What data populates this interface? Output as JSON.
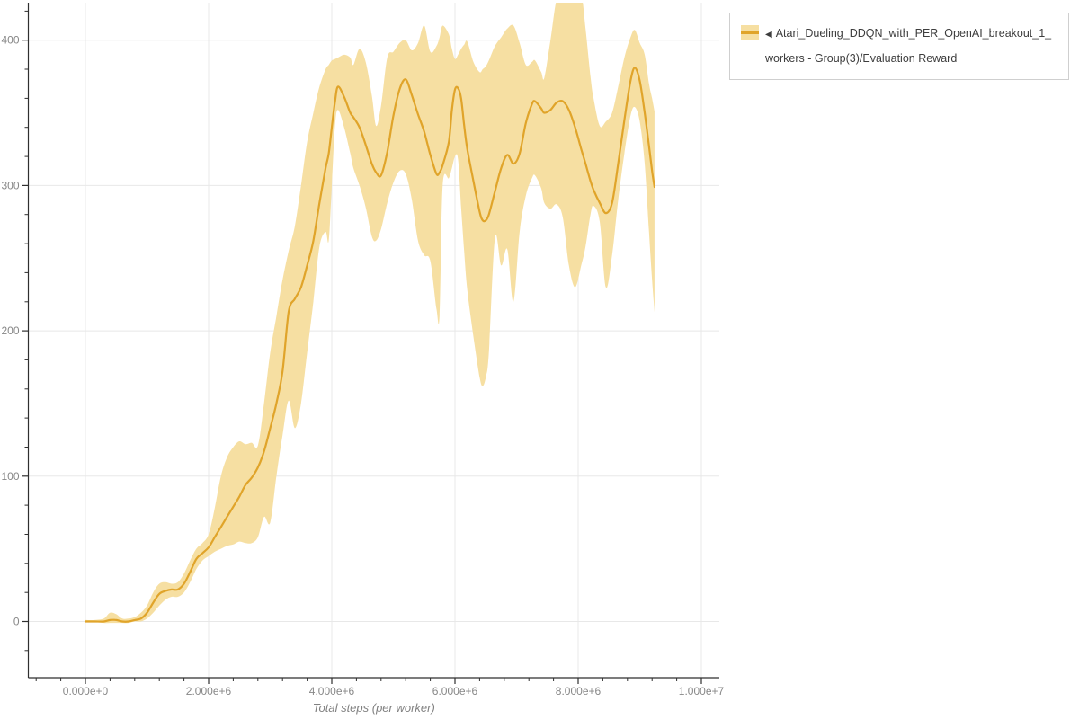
{
  "legend": {
    "marker": "◀",
    "label": "Atari_Dueling_DDQN_with_PER_OpenAI_breakout_1_workers - Group(3)/Evaluation Reward",
    "line_color": "#E0A42A",
    "band_color": "#F6DFA2",
    "border_color": "#cfcfcf",
    "text_color": "#3d3d3d"
  },
  "chart_data": {
    "type": "line",
    "title": "",
    "xlabel": "Total steps (per worker)",
    "ylabel": "",
    "grid": true,
    "legend_position": "top-right",
    "xlim_million_steps": [
      -0.93,
      10.29
    ],
    "ylim": [
      -39,
      426
    ],
    "x_ticks": [
      {
        "value": 0,
        "label": "0.000e+0"
      },
      {
        "value": 2,
        "label": "2.000e+6"
      },
      {
        "value": 4,
        "label": "4.000e+6"
      },
      {
        "value": 6,
        "label": "6.000e+6"
      },
      {
        "value": 8,
        "label": "8.000e+6"
      },
      {
        "value": 10,
        "label": "1.000e+7"
      }
    ],
    "y_ticks": [
      {
        "value": 0,
        "label": "0"
      },
      {
        "value": 100,
        "label": "100"
      },
      {
        "value": 200,
        "label": "200"
      },
      {
        "value": 300,
        "label": "300"
      },
      {
        "value": 400,
        "label": "400"
      }
    ],
    "x_minor_step_million": 0.4,
    "y_minor_step": 20,
    "colors": {
      "grid": "#e8e8e8",
      "axis": "#2f2f2f",
      "tick_label": "#878787",
      "axis_title": "#808080"
    },
    "series": [
      {
        "name": "Atari_Dueling_DDQN_with_PER_OpenAI_breakout_1_workers - Group(3)/Evaluation Reward",
        "color": "#E0A42A",
        "band_color": "#F6DFA2",
        "points_format": [
          "x_million_steps",
          "mean",
          "band_lower",
          "band_upper"
        ],
        "points": [
          [
            0,
            0,
            0,
            1
          ],
          [
            0.15,
            0,
            0,
            1
          ],
          [
            0.3,
            0,
            -1,
            2
          ],
          [
            0.4,
            1,
            -1,
            6
          ],
          [
            0.5,
            1,
            -1,
            5
          ],
          [
            0.6,
            0,
            -1,
            2
          ],
          [
            0.7,
            0,
            -1,
            2
          ],
          [
            0.8,
            1,
            0,
            3
          ],
          [
            0.9,
            2,
            0,
            6
          ],
          [
            1.0,
            6,
            2,
            11
          ],
          [
            1.1,
            13,
            6,
            20
          ],
          [
            1.2,
            19,
            11,
            26
          ],
          [
            1.3,
            21,
            15,
            27
          ],
          [
            1.4,
            22,
            17,
            26
          ],
          [
            1.5,
            22,
            17,
            27
          ],
          [
            1.6,
            26,
            20,
            33
          ],
          [
            1.7,
            34,
            27,
            42
          ],
          [
            1.8,
            43,
            36,
            50
          ],
          [
            1.9,
            47,
            42,
            54
          ],
          [
            2.0,
            51,
            45,
            60
          ],
          [
            2.1,
            58,
            48,
            78
          ],
          [
            2.2,
            65,
            50,
            100
          ],
          [
            2.3,
            72,
            52,
            113
          ],
          [
            2.4,
            79,
            53,
            120
          ],
          [
            2.5,
            86,
            55,
            124
          ],
          [
            2.6,
            94,
            54,
            122
          ],
          [
            2.7,
            99,
            54,
            123
          ],
          [
            2.8,
            106,
            58,
            121
          ],
          [
            2.9,
            117,
            72,
            150
          ],
          [
            3.0,
            133,
            68,
            185
          ],
          [
            3.1,
            150,
            100,
            210
          ],
          [
            3.2,
            172,
            128,
            235
          ],
          [
            3.3,
            213,
            152,
            255
          ],
          [
            3.4,
            222,
            133,
            272
          ],
          [
            3.5,
            230,
            150,
            300
          ],
          [
            3.6,
            245,
            185,
            330
          ],
          [
            3.7,
            262,
            220,
            350
          ],
          [
            3.8,
            288,
            258,
            368
          ],
          [
            3.9,
            312,
            268,
            380
          ],
          [
            3.95,
            322,
            262,
            383
          ],
          [
            4.0,
            340,
            300,
            386
          ],
          [
            4.05,
            357,
            340,
            387
          ],
          [
            4.1,
            368,
            352,
            388
          ],
          [
            4.2,
            361,
            340,
            390
          ],
          [
            4.3,
            350,
            322,
            388
          ],
          [
            4.35,
            347,
            312,
            383
          ],
          [
            4.45,
            340,
            300,
            394
          ],
          [
            4.55,
            328,
            285,
            385
          ],
          [
            4.65,
            315,
            265,
            362
          ],
          [
            4.72,
            309,
            262,
            341
          ],
          [
            4.8,
            307,
            270,
            355
          ],
          [
            4.9,
            323,
            288,
            388
          ],
          [
            5.0,
            348,
            302,
            392
          ],
          [
            5.1,
            366,
            310,
            398
          ],
          [
            5.2,
            373,
            308,
            400
          ],
          [
            5.3,
            362,
            290,
            393
          ],
          [
            5.4,
            349,
            262,
            398
          ],
          [
            5.5,
            337,
            252,
            410
          ],
          [
            5.6,
            321,
            248,
            392
          ],
          [
            5.7,
            308,
            215,
            396
          ],
          [
            5.75,
            309,
            211,
            402
          ],
          [
            5.8,
            314,
            300,
            410
          ],
          [
            5.9,
            330,
            305,
            404
          ],
          [
            5.95,
            352,
            312,
            394
          ],
          [
            6.0,
            366,
            320,
            387
          ],
          [
            6.05,
            367,
            318,
            390
          ],
          [
            6.1,
            360,
            285,
            394
          ],
          [
            6.15,
            341,
            254,
            397
          ],
          [
            6.2,
            325,
            228,
            399
          ],
          [
            6.3,
            303,
            196,
            385
          ],
          [
            6.4,
            282,
            168,
            378
          ],
          [
            6.45,
            276,
            162,
            380
          ],
          [
            6.5,
            276,
            168,
            382
          ],
          [
            6.55,
            280,
            185,
            386
          ],
          [
            6.65,
            296,
            264,
            396
          ],
          [
            6.75,
            312,
            245,
            402
          ],
          [
            6.85,
            321,
            256,
            408
          ],
          [
            6.95,
            315,
            220,
            410
          ],
          [
            7.05,
            322,
            268,
            398
          ],
          [
            7.15,
            343,
            293,
            383
          ],
          [
            7.25,
            356,
            305,
            385
          ],
          [
            7.3,
            358,
            307,
            386
          ],
          [
            7.4,
            353,
            298,
            378
          ],
          [
            7.45,
            350,
            288,
            374
          ],
          [
            7.55,
            352,
            284,
            400
          ],
          [
            7.65,
            357,
            287,
            428
          ],
          [
            7.75,
            358,
            278,
            433
          ],
          [
            7.85,
            352,
            245,
            434
          ],
          [
            7.95,
            340,
            230,
            434
          ],
          [
            8.05,
            325,
            245,
            432
          ],
          [
            8.12,
            315,
            258,
            408
          ],
          [
            8.2,
            303,
            280,
            375
          ],
          [
            8.25,
            297,
            286,
            360
          ],
          [
            8.35,
            288,
            275,
            341
          ],
          [
            8.45,
            281,
            230,
            344
          ],
          [
            8.55,
            288,
            252,
            350
          ],
          [
            8.65,
            315,
            290,
            368
          ],
          [
            8.75,
            345,
            322,
            388
          ],
          [
            8.85,
            372,
            348,
            402
          ],
          [
            8.92,
            381,
            354,
            407
          ],
          [
            9.0,
            372,
            344,
            398
          ],
          [
            9.08,
            350,
            315,
            390
          ],
          [
            9.15,
            327,
            268,
            370
          ],
          [
            9.2,
            310,
            235,
            360
          ],
          [
            9.24,
            299,
            213,
            351
          ]
        ]
      }
    ]
  }
}
